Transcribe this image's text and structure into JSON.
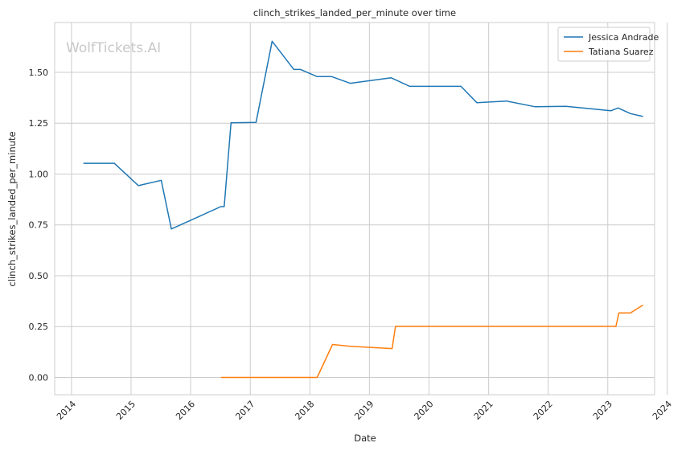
{
  "chart_data": {
    "type": "line",
    "title": "clinch_strikes_landed_per_minute over time",
    "xlabel": "Date",
    "ylabel": "clinch_strikes_landed_per_minute",
    "watermark": "WolfTickets.AI",
    "xlim": [
      "2013-09-20",
      "2023-10-15"
    ],
    "ylim": [
      -0.085,
      1.745
    ],
    "x_ticks": [
      "2014-01-01",
      "2015-01-01",
      "2016-01-01",
      "2017-01-01",
      "2018-01-01",
      "2019-01-01",
      "2020-01-01",
      "2021-01-01",
      "2022-01-01",
      "2023-01-01",
      "2024-01-01"
    ],
    "x_tick_labels": [
      "2014",
      "2015",
      "2016",
      "2017",
      "2018",
      "2019",
      "2020",
      "2021",
      "2022",
      "2023",
      "2024"
    ],
    "y_ticks": [
      0.0,
      0.25,
      0.5,
      0.75,
      1.0,
      1.25,
      1.5
    ],
    "y_tick_labels": [
      "0.00",
      "0.25",
      "0.50",
      "0.75",
      "1.00",
      "1.25",
      "1.50"
    ],
    "grid": true,
    "legend_position": "top-right",
    "series": [
      {
        "name": "Jessica Andrade",
        "color": "#1f77b4",
        "points": [
          {
            "x": "2014-03-15",
            "y": 1.053
          },
          {
            "x": "2014-09-20",
            "y": 1.053
          },
          {
            "x": "2015-02-15",
            "y": 0.943
          },
          {
            "x": "2015-07-05",
            "y": 0.969
          },
          {
            "x": "2015-09-05",
            "y": 0.73
          },
          {
            "x": "2016-07-05",
            "y": 0.84
          },
          {
            "x": "2016-07-25",
            "y": 0.84
          },
          {
            "x": "2016-09-05",
            "y": 1.252
          },
          {
            "x": "2017-02-05",
            "y": 1.254
          },
          {
            "x": "2017-05-15",
            "y": 1.653
          },
          {
            "x": "2017-09-25",
            "y": 1.514
          },
          {
            "x": "2017-11-05",
            "y": 1.514
          },
          {
            "x": "2018-02-15",
            "y": 1.479
          },
          {
            "x": "2018-05-15",
            "y": 1.479
          },
          {
            "x": "2018-09-05",
            "y": 1.446
          },
          {
            "x": "2019-05-15",
            "y": 1.473
          },
          {
            "x": "2019-09-05",
            "y": 1.431
          },
          {
            "x": "2020-07-15",
            "y": 1.431
          },
          {
            "x": "2020-10-20",
            "y": 1.351
          },
          {
            "x": "2021-04-20",
            "y": 1.359
          },
          {
            "x": "2021-10-10",
            "y": 1.331
          },
          {
            "x": "2022-04-20",
            "y": 1.333
          },
          {
            "x": "2023-01-20",
            "y": 1.311
          },
          {
            "x": "2023-03-05",
            "y": 1.325
          },
          {
            "x": "2023-05-20",
            "y": 1.297
          },
          {
            "x": "2023-08-05",
            "y": 1.283
          }
        ]
      },
      {
        "name": "Tatiana Suarez",
        "color": "#ff7f0e",
        "points": [
          {
            "x": "2016-07-05",
            "y": 0.0
          },
          {
            "x": "2018-02-15",
            "y": 0.0
          },
          {
            "x": "2018-05-20",
            "y": 0.162
          },
          {
            "x": "2018-09-05",
            "y": 0.153
          },
          {
            "x": "2019-05-20",
            "y": 0.142
          },
          {
            "x": "2019-06-10",
            "y": 0.251
          },
          {
            "x": "2023-02-20",
            "y": 0.251
          },
          {
            "x": "2023-03-10",
            "y": 0.317
          },
          {
            "x": "2023-05-20",
            "y": 0.317
          },
          {
            "x": "2023-08-05",
            "y": 0.356
          }
        ]
      }
    ]
  }
}
